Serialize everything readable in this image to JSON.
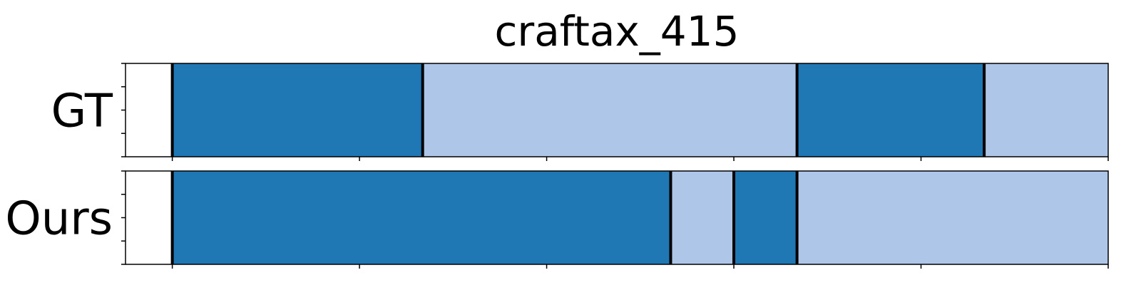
{
  "chart_data": {
    "type": "segmentation-timeline",
    "title": "craftax_415",
    "xlim": [
      0,
      21
    ],
    "x_ticks": [
      1,
      5,
      9,
      13,
      17,
      21
    ],
    "rows": [
      {
        "label": "GT",
        "segments": [
          {
            "start": 1,
            "end": 6.35,
            "class": "dark"
          },
          {
            "start": 6.35,
            "end": 14.35,
            "class": "light"
          },
          {
            "start": 14.35,
            "end": 18.35,
            "class": "dark"
          },
          {
            "start": 18.35,
            "end": 21,
            "class": "light"
          }
        ]
      },
      {
        "label": "Ours",
        "segments": [
          {
            "start": 1,
            "end": 11.65,
            "class": "dark"
          },
          {
            "start": 11.65,
            "end": 13,
            "class": "light"
          },
          {
            "start": 13,
            "end": 14.35,
            "class": "dark"
          },
          {
            "start": 14.35,
            "end": 21,
            "class": "light"
          }
        ]
      }
    ],
    "colors": {
      "dark": "#1f77b4",
      "light": "#aec7e8",
      "boundary": "#000000"
    },
    "grid": false
  }
}
